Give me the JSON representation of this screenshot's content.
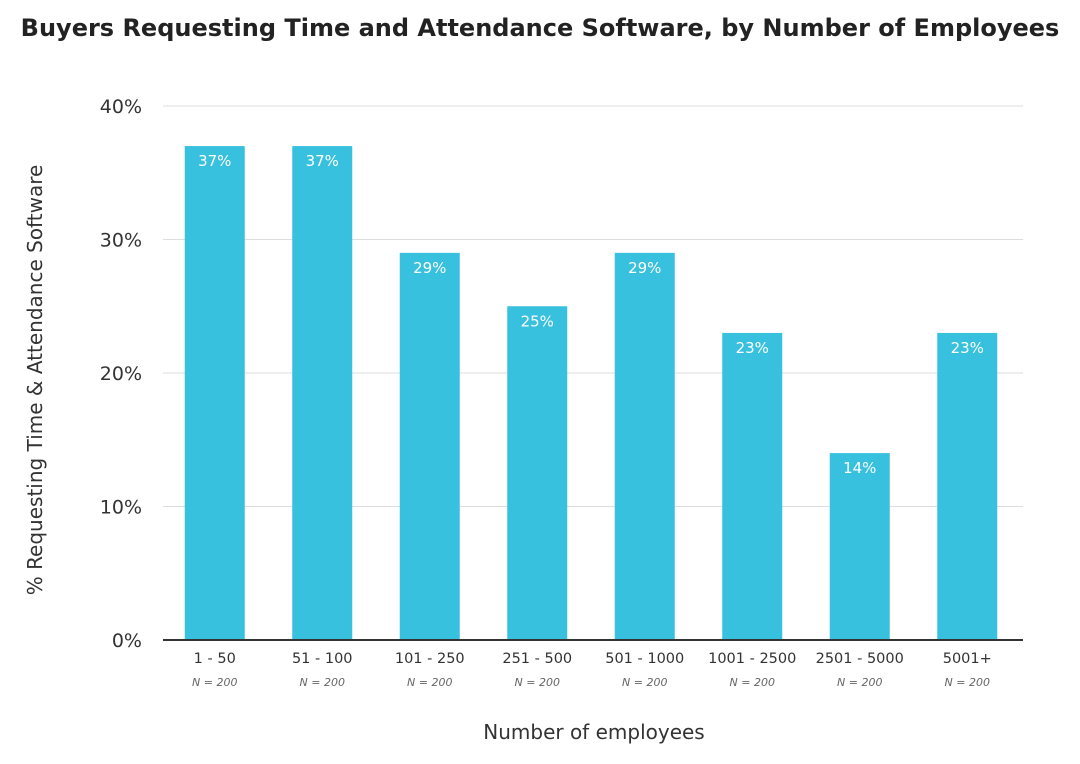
{
  "chart_data": {
    "type": "bar",
    "title": "Buyers Requesting Time and Attendance Software, by Number of Employees",
    "xlabel": "Number of employees",
    "ylabel": "% Requesting Time & Attendance Software",
    "categories": [
      "1 - 50",
      "51 - 100",
      "101 - 250",
      "251 - 500",
      "501 - 1000",
      "1001 - 2500",
      "2501 - 5000",
      "5001+"
    ],
    "sample_sizes": [
      "N = 200",
      "N = 200",
      "N = 200",
      "N = 200",
      "N = 200",
      "N = 200",
      "N = 200",
      "N = 200"
    ],
    "values": [
      37,
      37,
      29,
      25,
      29,
      23,
      14,
      23
    ],
    "value_labels": [
      "37%",
      "37%",
      "29%",
      "25%",
      "29%",
      "23%",
      "14%",
      "23%"
    ],
    "ylim": [
      0,
      40
    ],
    "yticks": [
      0,
      10,
      20,
      30,
      40
    ],
    "ytick_labels": [
      "0%",
      "10%",
      "20%",
      "30%",
      "40%"
    ],
    "grid": true,
    "colors": {
      "bar": "#38c0df",
      "grid": "#dddddd",
      "axis": "#333333"
    }
  }
}
